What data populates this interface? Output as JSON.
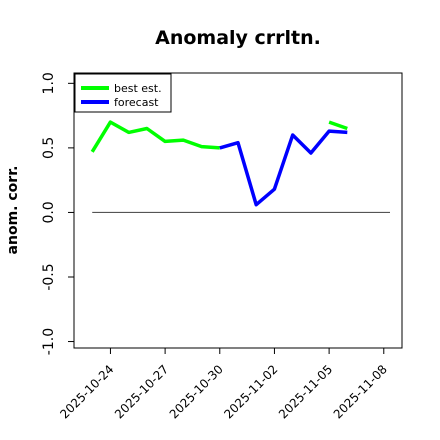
{
  "chart_data": {
    "type": "line",
    "title": "Anomaly crrltn.",
    "xlabel": "",
    "ylabel": "anom. corr.",
    "ylim": [
      -1.05,
      1.08
    ],
    "yticks": [
      -1.0,
      -0.5,
      0.0,
      0.5,
      1.0
    ],
    "ytick_labels": [
      "-1.0",
      "-0.5",
      "0.0",
      "0.5",
      "1.0"
    ],
    "xlim": [
      "2025-10-22",
      "2025-11-09"
    ],
    "xticks": [
      "2025-10-24",
      "2025-10-27",
      "2025-10-30",
      "2025-11-02",
      "2025-11-05",
      "2025-11-08"
    ],
    "highlight_tick": "2025-10-30",
    "highlight_color": "#228b22",
    "reference_line": {
      "y": 0.0,
      "from": "2025-10-23",
      "to": "2025-11-09",
      "color": "#555555"
    },
    "legend": {
      "position": "top-left"
    },
    "grid": false,
    "series": [
      {
        "name": "best est.",
        "color": "#00ff00",
        "x": [
          "2025-10-23",
          "2025-10-24",
          "2025-10-25",
          "2025-10-26",
          "2025-10-27",
          "2025-10-28",
          "2025-10-29",
          "2025-10-30"
        ],
        "y": [
          0.47,
          0.7,
          0.62,
          0.65,
          0.55,
          0.56,
          0.51,
          0.5
        ]
      },
      {
        "name": "forecast",
        "color": "#0000ff",
        "x": [
          "2025-10-30",
          "2025-10-31",
          "2025-11-01",
          "2025-11-02",
          "2025-11-03",
          "2025-11-04",
          "2025-11-05",
          "2025-11-06"
        ],
        "y": [
          0.5,
          0.54,
          0.06,
          0.18,
          0.6,
          0.46,
          0.63,
          0.62
        ]
      },
      {
        "name": "",
        "color": "#00ff00",
        "x": [
          "2025-11-05",
          "2025-11-06"
        ],
        "y": [
          0.7,
          0.65
        ]
      }
    ]
  }
}
